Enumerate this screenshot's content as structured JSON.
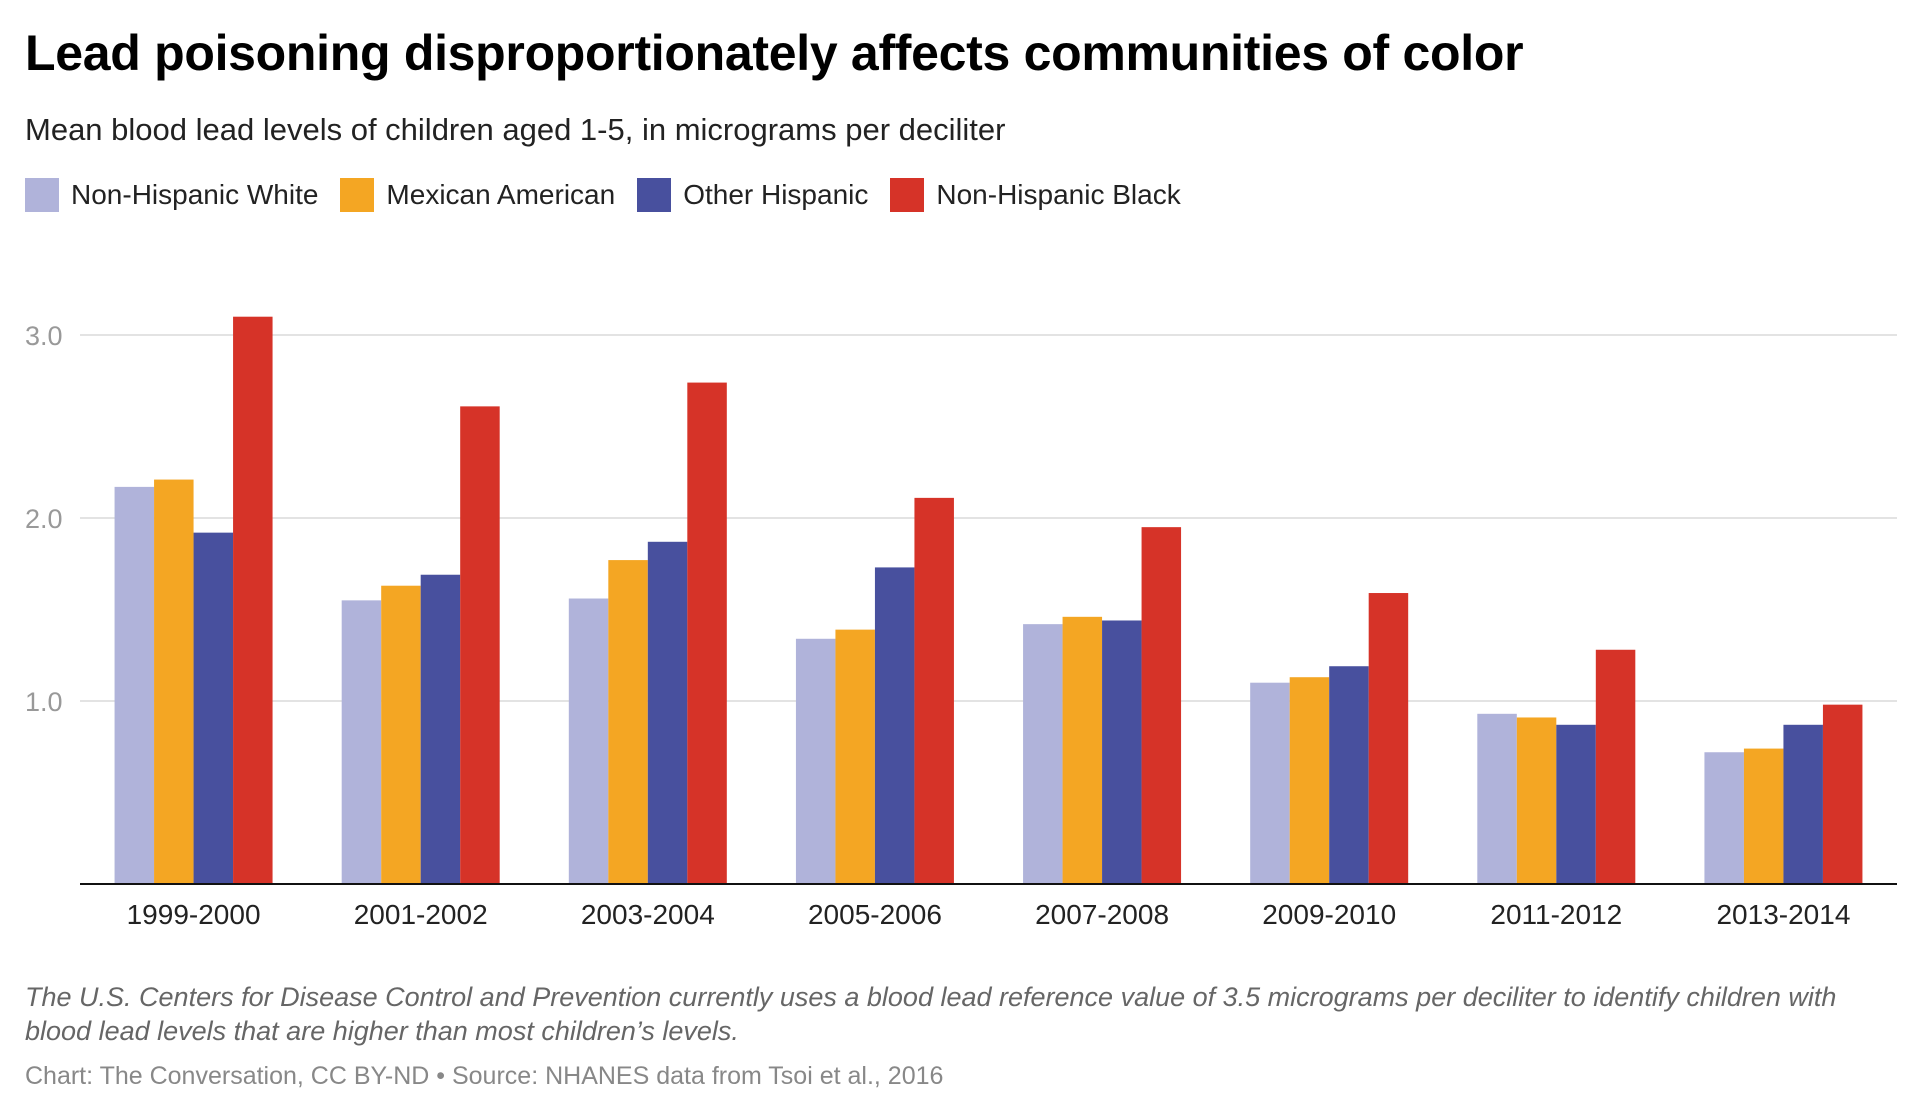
{
  "chart_data": {
    "type": "bar",
    "title": "Lead poisoning disproportionately affects communities of color",
    "subtitle": "Mean blood lead levels of children aged 1-5, in micrograms per deciliter",
    "categories": [
      "1999-2000",
      "2001-2002",
      "2003-2004",
      "2005-2006",
      "2007-2008",
      "2009-2010",
      "2011-2012",
      "2013-2014"
    ],
    "series": [
      {
        "name": "Non-Hispanic White",
        "color": "#b0b3da",
        "values": [
          2.17,
          1.55,
          1.56,
          1.34,
          1.42,
          1.1,
          0.93,
          0.72
        ]
      },
      {
        "name": "Mexican American",
        "color": "#f4a623",
        "values": [
          2.21,
          1.63,
          1.77,
          1.39,
          1.46,
          1.13,
          0.91,
          0.74
        ]
      },
      {
        "name": "Other Hispanic",
        "color": "#48509e",
        "values": [
          1.92,
          1.69,
          1.87,
          1.73,
          1.44,
          1.19,
          0.87,
          0.87
        ]
      },
      {
        "name": "Non-Hispanic Black",
        "color": "#d63328",
        "values": [
          3.1,
          2.61,
          2.74,
          2.11,
          1.95,
          1.59,
          1.28,
          0.98
        ]
      }
    ],
    "yticks": [
      "1.0",
      "2.0",
      "3.0"
    ],
    "ylim": [
      0,
      3.2
    ],
    "grid": true,
    "legend_position": "top-left",
    "note": "The U.S. Centers for Disease Control and Prevention currently uses a blood lead reference value of 3.5 micrograms per deciliter to identify children with blood lead levels that are higher than most children’s levels.",
    "source": "Chart: The Conversation, CC BY-ND • Source: NHANES data from Tsoi et al., 2016"
  }
}
